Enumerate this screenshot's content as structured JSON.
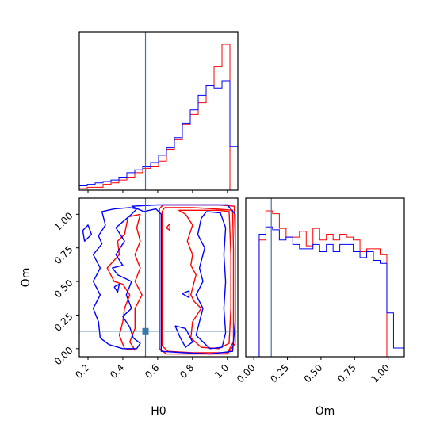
{
  "chart_data": {
    "type": "corner",
    "parameters": [
      "H0",
      "Om"
    ],
    "truths": {
      "H0": 0.53,
      "Om": 0.13,
      "color": "#3b78a8"
    },
    "colors": {
      "series_a": "#ff0000",
      "series_b": "#0000ff"
    },
    "ranges": {
      "H0": [
        0.15,
        1.06
      ],
      "Om": [
        -0.06,
        1.12
      ]
    },
    "ticks": {
      "H0": {
        "values": [
          0.2,
          0.4,
          0.6,
          0.8,
          1.0
        ],
        "labels": [
          "0.2",
          "0.4",
          "0.6",
          "0.8",
          "1.0"
        ]
      },
      "Om": {
        "values": [
          0.0,
          0.25,
          0.5,
          0.75,
          1.0
        ],
        "labels": [
          "0.00",
          "0.25",
          "0.50",
          "0.75",
          "1.00"
        ]
      }
    },
    "hist_H0": {
      "edges": [
        0.15,
        0.1955,
        0.241,
        0.2865,
        0.332,
        0.3775,
        0.423,
        0.4685,
        0.514,
        0.5595,
        0.605,
        0.6505,
        0.696,
        0.7415,
        0.787,
        0.8325,
        0.878,
        0.9235,
        0.969,
        1.0145,
        1.06
      ],
      "series": [
        {
          "color": "#ff0000",
          "values": [
            1,
            2,
            2,
            4,
            5,
            7,
            9,
            12,
            15,
            16,
            20,
            28,
            35,
            45,
            52,
            60,
            72,
            85,
            100,
            0
          ]
        },
        {
          "color": "#0000ff",
          "values": [
            3,
            4,
            5,
            6,
            7,
            9,
            12,
            14,
            16,
            19,
            24,
            29,
            36,
            46,
            55,
            65,
            72,
            70,
            75,
            30
          ]
        }
      ]
    },
    "hist_Om": {
      "edges": [
        -0.06,
        -0.01,
        0.04,
        0.09,
        0.14,
        0.19,
        0.24,
        0.29,
        0.34,
        0.39,
        0.44,
        0.49,
        0.54,
        0.59,
        0.64,
        0.69,
        0.74,
        0.79,
        0.84,
        0.89,
        0.94,
        0.99,
        1.04,
        1.12
      ],
      "series": [
        {
          "color": "#ff0000",
          "values": [
            0,
            0,
            80,
            100,
            98,
            88,
            82,
            82,
            86,
            76,
            88,
            80,
            84,
            80,
            84,
            82,
            80,
            72,
            74,
            74,
            70,
            0,
            0
          ]
        },
        {
          "color": "#0000ff",
          "values": [
            0,
            0,
            84,
            89,
            87,
            80,
            82,
            77,
            74,
            74,
            77,
            72,
            77,
            72,
            77,
            77,
            72,
            68,
            72,
            66,
            64,
            30,
            6
          ]
        }
      ]
    },
    "contours": [
      {
        "color": "#ff0000",
        "levels": [
          [
            [
              0.63,
              1.07
            ],
            [
              0.8,
              1.07
            ],
            [
              0.95,
              1.07
            ],
            [
              1.04,
              1.06
            ],
            [
              1.045,
              0.8
            ],
            [
              1.045,
              0.4
            ],
            [
              1.045,
              0.04
            ],
            [
              1.0,
              -0.04
            ],
            [
              0.8,
              -0.04
            ],
            [
              0.65,
              -0.04
            ],
            [
              0.61,
              0.0
            ],
            [
              0.61,
              0.2
            ],
            [
              0.61,
              0.5
            ],
            [
              0.61,
              0.8
            ],
            [
              0.61,
              1.04
            ],
            [
              0.63,
              1.07
            ]
          ],
          [
            [
              0.64,
              1.05
            ],
            [
              0.8,
              1.05
            ],
            [
              0.93,
              1.04
            ],
            [
              1.03,
              1.03
            ],
            [
              1.035,
              0.75
            ],
            [
              1.035,
              0.4
            ],
            [
              1.035,
              0.05
            ],
            [
              1.0,
              -0.03
            ],
            [
              0.8,
              -0.03
            ],
            [
              0.66,
              -0.02
            ],
            [
              0.625,
              0.02
            ],
            [
              0.625,
              0.4
            ],
            [
              0.625,
              0.8
            ],
            [
              0.625,
              1.02
            ],
            [
              0.64,
              1.05
            ]
          ],
          [
            [
              0.72,
              1.03
            ],
            [
              0.82,
              1.03
            ],
            [
              0.95,
              1.03
            ],
            [
              1.01,
              1.02
            ],
            [
              1.02,
              0.7
            ],
            [
              1.02,
              0.3
            ],
            [
              1.01,
              0.04
            ],
            [
              0.95,
              0.0
            ],
            [
              0.85,
              0.01
            ],
            [
              0.79,
              0.08
            ],
            [
              0.8,
              0.2
            ],
            [
              0.85,
              0.3
            ],
            [
              0.81,
              0.35
            ],
            [
              0.79,
              0.4
            ],
            [
              0.82,
              0.55
            ],
            [
              0.79,
              0.62
            ],
            [
              0.8,
              0.7
            ],
            [
              0.77,
              0.8
            ],
            [
              0.8,
              0.92
            ],
            [
              0.76,
              1.0
            ],
            [
              0.72,
              1.03
            ]
          ],
          [
            [
              0.65,
              0.9
            ],
            [
              0.67,
              0.88
            ],
            [
              0.67,
              0.93
            ],
            [
              0.65,
              0.9
            ]
          ],
          [
            [
              0.5,
              1.0
            ],
            [
              0.43,
              0.98
            ],
            [
              0.41,
              0.85
            ],
            [
              0.37,
              0.8
            ],
            [
              0.38,
              0.7
            ],
            [
              0.31,
              0.6
            ],
            [
              0.35,
              0.5
            ],
            [
              0.4,
              0.48
            ],
            [
              0.44,
              0.4
            ],
            [
              0.41,
              0.3
            ],
            [
              0.4,
              0.2
            ],
            [
              0.38,
              0.1
            ],
            [
              0.41,
              0.0
            ],
            [
              0.47,
              -0.01
            ],
            [
              0.44,
              0.05
            ],
            [
              0.47,
              0.15
            ],
            [
              0.47,
              0.3
            ],
            [
              0.51,
              0.4
            ],
            [
              0.47,
              0.5
            ],
            [
              0.5,
              0.6
            ],
            [
              0.47,
              0.7
            ],
            [
              0.5,
              0.8
            ],
            [
              0.48,
              0.9
            ],
            [
              0.5,
              1.0
            ]
          ]
        ]
      },
      {
        "color": "#0000ff",
        "levels": [
          [
            [
              0.45,
              1.06
            ],
            [
              0.6,
              1.07
            ],
            [
              0.75,
              1.07
            ],
            [
              0.92,
              1.07
            ],
            [
              1.0,
              1.07
            ],
            [
              1.045,
              1.0
            ],
            [
              1.045,
              0.6
            ],
            [
              1.045,
              0.2
            ],
            [
              1.03,
              -0.02
            ],
            [
              0.9,
              -0.04
            ],
            [
              0.75,
              -0.03
            ],
            [
              0.62,
              -0.02
            ],
            [
              0.62,
              0.0
            ],
            [
              0.62,
              0.3
            ],
            [
              0.62,
              0.7
            ],
            [
              0.62,
              1.0
            ],
            [
              0.59,
              1.04
            ],
            [
              0.52,
              1.02
            ],
            [
              0.45,
              1.06
            ]
          ],
          [
            [
              0.35,
              1.04
            ],
            [
              0.28,
              1.02
            ],
            [
              0.3,
              0.92
            ],
            [
              0.26,
              0.84
            ],
            [
              0.28,
              0.78
            ],
            [
              0.23,
              0.7
            ],
            [
              0.27,
              0.6
            ],
            [
              0.23,
              0.5
            ],
            [
              0.27,
              0.4
            ],
            [
              0.23,
              0.3
            ],
            [
              0.26,
              0.2
            ],
            [
              0.27,
              0.08
            ],
            [
              0.32,
              0.03
            ],
            [
              0.4,
              0.0
            ],
            [
              0.48,
              0.0
            ],
            [
              0.5,
              0.04
            ],
            [
              0.46,
              0.08
            ],
            [
              0.44,
              0.16
            ],
            [
              0.4,
              0.24
            ],
            [
              0.45,
              0.3
            ],
            [
              0.42,
              0.4
            ],
            [
              0.45,
              0.5
            ],
            [
              0.37,
              0.55
            ],
            [
              0.34,
              0.6
            ],
            [
              0.4,
              0.62
            ],
            [
              0.36,
              0.7
            ],
            [
              0.41,
              0.8
            ],
            [
              0.36,
              0.9
            ],
            [
              0.45,
              1.0
            ],
            [
              0.48,
              1.04
            ],
            [
              0.44,
              1.05
            ],
            [
              0.35,
              1.04
            ]
          ],
          [
            [
              0.88,
              1.02
            ],
            [
              0.85,
              0.97
            ],
            [
              0.83,
              0.85
            ],
            [
              0.87,
              0.75
            ],
            [
              0.84,
              0.6
            ],
            [
              0.86,
              0.5
            ],
            [
              0.82,
              0.4
            ],
            [
              0.86,
              0.3
            ],
            [
              0.84,
              0.2
            ],
            [
              0.82,
              0.1
            ],
            [
              0.9,
              0.0
            ],
            [
              0.97,
              0.01
            ],
            [
              0.99,
              0.12
            ],
            [
              0.98,
              0.3
            ],
            [
              0.99,
              0.5
            ],
            [
              0.98,
              0.7
            ],
            [
              0.99,
              0.9
            ],
            [
              0.96,
              1.01
            ],
            [
              0.88,
              1.02
            ]
          ],
          [
            [
              0.7,
              0.17
            ],
            [
              0.76,
              0.15
            ],
            [
              0.8,
              0.05
            ],
            [
              0.76,
              0.01
            ],
            [
              0.73,
              0.08
            ],
            [
              0.7,
              0.17
            ]
          ],
          [
            [
              0.74,
              0.41
            ],
            [
              0.78,
              0.43
            ],
            [
              0.78,
              0.38
            ],
            [
              0.74,
              0.41
            ]
          ],
          [
            [
              0.35,
              0.46
            ],
            [
              0.38,
              0.48
            ],
            [
              0.37,
              0.42
            ],
            [
              0.35,
              0.46
            ]
          ],
          [
            [
              0.17,
              0.88
            ],
            [
              0.2,
              0.92
            ],
            [
              0.22,
              0.85
            ],
            [
              0.18,
              0.8
            ],
            [
              0.17,
              0.88
            ]
          ]
        ]
      }
    ],
    "xlabel_left": "H0",
    "xlabel_right": "Om",
    "ylabel": "Om"
  }
}
